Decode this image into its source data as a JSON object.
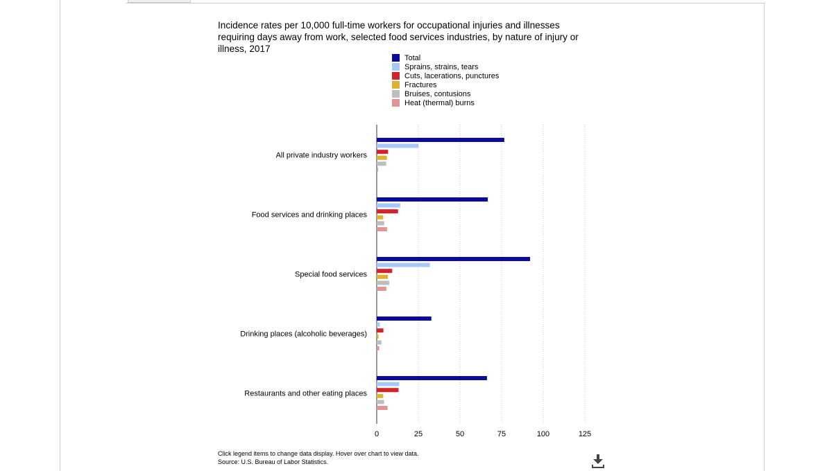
{
  "chart_data": {
    "type": "bar",
    "orientation": "horizontal",
    "title": "Incidence rates per 10,000 full-time workers for occupational injuries and illnesses requiring days away from work, selected food services industries, by nature of injury or illness, 2017",
    "categories": [
      "All private industry workers",
      "Food services and drinking places",
      "Special food services",
      "Drinking places (alcoholic beverages)",
      "Restaurants and other eating places"
    ],
    "series": [
      {
        "name": "Total",
        "color": "#0a0aa0",
        "values": [
          76.6,
          66.7,
          92.1,
          32.8,
          66.2
        ]
      },
      {
        "name": "Sprains, strains, tears",
        "color": "#a8c8f8",
        "values": [
          25.1,
          14.1,
          31.9,
          1.9,
          13.5
        ]
      },
      {
        "name": "Cuts, lacerations, punctures",
        "color": "#d2222d",
        "values": [
          6.8,
          12.8,
          9.3,
          4.0,
          13.1
        ]
      },
      {
        "name": "Fractures",
        "color": "#e0b030",
        "values": [
          6.1,
          3.9,
          6.7,
          1.1,
          3.9
        ]
      },
      {
        "name": "Bruises, contusions",
        "color": "#bdbdbd",
        "values": [
          5.7,
          4.5,
          7.5,
          2.8,
          4.4
        ]
      },
      {
        "name": "Heat (thermal) burns",
        "color": "#e29595",
        "values": [
          0.8,
          6.2,
          5.8,
          1.5,
          6.5
        ]
      }
    ],
    "xlim": [
      0,
      125
    ],
    "xticks": [
      0,
      25,
      50,
      75,
      100,
      125
    ],
    "grid": true,
    "legend_position": "top"
  },
  "notes": {
    "line1": "Click legend items to change data display. Hover over chart to view data.",
    "line2": "Source: U.S. Bureau of Labor Statistics."
  }
}
